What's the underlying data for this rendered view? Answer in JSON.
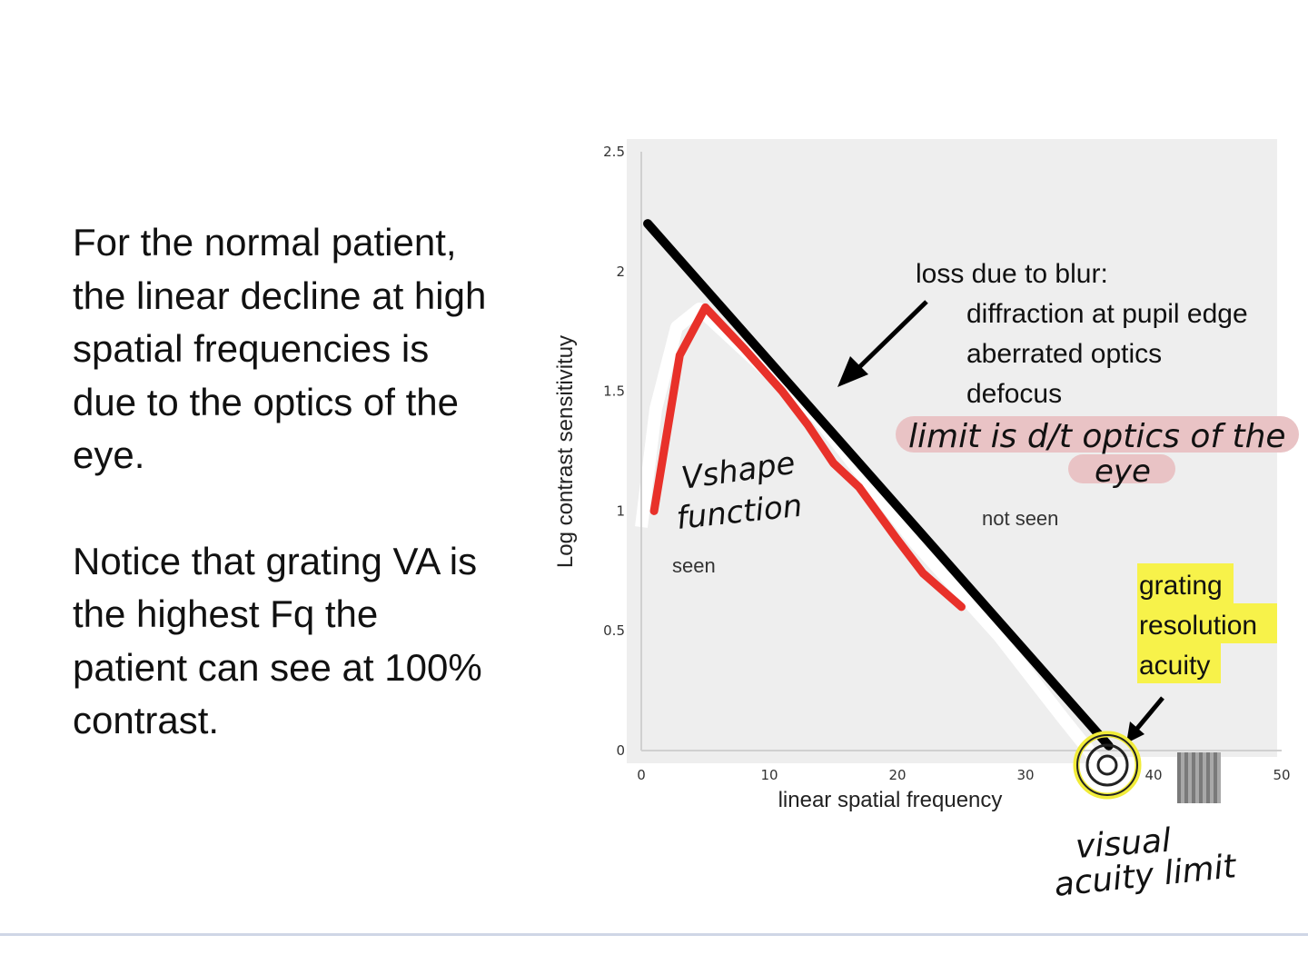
{
  "text": {
    "paragraph_1": "For the normal patient, the linear decline at high spatial frequencies is due to the optics of the eye.",
    "paragraph_2": "Notice that grating VA is the highest Fq the patient can see at 100% contrast."
  },
  "colors": {
    "red_curve": "#e8312a",
    "black_line": "#000000",
    "highlight_yellow": "#f7f24a",
    "highlight_pink": "#e9c3c5",
    "plot_background": "#eeeeee"
  },
  "chart_data": {
    "type": "line",
    "xlabel": "linear spatial frequency",
    "ylabel": "Log contrast sensitivituy",
    "xlim": [
      0,
      50
    ],
    "ylim": [
      0,
      2.5
    ],
    "x_ticks": [
      "0",
      "10",
      "20",
      "30",
      "40",
      "50"
    ],
    "y_ticks": [
      "0",
      "0.5",
      "1",
      "1.5",
      "2",
      "2.5"
    ],
    "series": [
      {
        "color": "#e8312a",
        "x": [
          1,
          3,
          5,
          8,
          11,
          13,
          15,
          17,
          20,
          22,
          25
        ],
        "y": [
          1.0,
          1.65,
          1.85,
          1.68,
          1.5,
          1.36,
          1.2,
          1.1,
          0.88,
          0.74,
          0.6
        ]
      },
      {
        "color": "#000000",
        "x": [
          0.5,
          36.5
        ],
        "y": [
          2.2,
          0.02
        ]
      }
    ],
    "annotations": {
      "blur_heading": "loss due to blur:",
      "blur_items": [
        "diffraction at pupil edge",
        "aberrated optics",
        "defocus"
      ],
      "optics_note_line1": "limit is d/t optics of the",
      "optics_note_line2": "eye",
      "vshape_line1": "Vshape",
      "vshape_line2": "function",
      "seen": "seen",
      "not_seen": "not seen",
      "grating_lines": [
        "grating",
        "resolution",
        "acuity"
      ],
      "va_limit_line1": "visual",
      "va_limit_line2": "acuity limit"
    }
  }
}
